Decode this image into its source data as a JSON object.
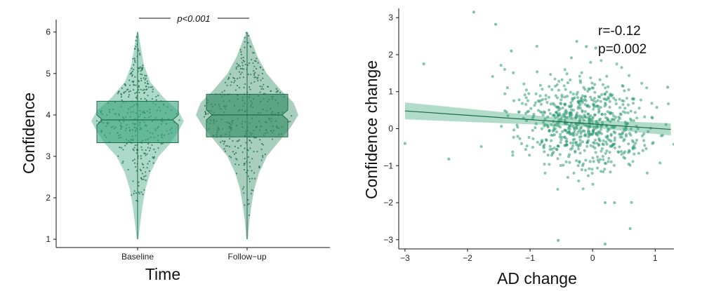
{
  "colors": {
    "baseline": "#3aa57e",
    "followup": "#2f8a63",
    "point": "#2f9a72",
    "line": "#1e6b4c",
    "ribbon": "#a3d6c0",
    "axis": "#111111"
  },
  "chart_data": [
    {
      "type": "violin-box",
      "xlabel": "Time",
      "ylabel": "Confidence",
      "categories": [
        "Baseline",
        "Follow−up"
      ],
      "ylim": [
        0.8,
        6.3
      ],
      "yticks": [
        "1",
        "2",
        "3",
        "4",
        "5",
        "6"
      ],
      "grid": false,
      "significance": "p<0.001",
      "series": [
        {
          "median": 3.88,
          "q1": 3.33,
          "q3": 4.33,
          "min": 1.0,
          "max": 6.0
        },
        {
          "median": 4.0,
          "q1": 3.47,
          "q3": 4.5,
          "min": 1.0,
          "max": 6.0
        }
      ]
    },
    {
      "type": "scatter",
      "xlabel": "AD change",
      "ylabel": "Confidence change",
      "xlim": [
        -3.1,
        1.3
      ],
      "ylim": [
        -3.25,
        3.25
      ],
      "xticks": [
        "−3",
        "−2",
        "−1",
        "0",
        "1"
      ],
      "yticks": [
        "−3",
        "−2",
        "−1",
        "0",
        "1",
        "2",
        "3"
      ],
      "grid": false,
      "annotation": {
        "r": "r=-0.12",
        "p": "p=0.002"
      },
      "fit": {
        "x": [
          -3.0,
          1.25
        ],
        "y": [
          0.48,
          -0.02
        ]
      },
      "notable_points": [
        {
          "x": -1.9,
          "y": 3.15
        },
        {
          "x": -1.55,
          "y": 2.82
        },
        {
          "x": -2.7,
          "y": 1.75
        },
        {
          "x": -3.0,
          "y": -0.4
        },
        {
          "x": -0.55,
          "y": -3.02
        },
        {
          "x": 0.2,
          "y": -3.12
        },
        {
          "x": 0.6,
          "y": -2.7
        },
        {
          "x": 0.2,
          "y": -2.0
        },
        {
          "x": 0.35,
          "y": -2.0
        },
        {
          "x": -0.1,
          "y": 2.22
        },
        {
          "x": 0.05,
          "y": 2.18
        },
        {
          "x": 1.2,
          "y": 1.12
        },
        {
          "x": 1.3,
          "y": -0.42
        },
        {
          "x": -2.3,
          "y": -0.82
        },
        {
          "x": -1.3,
          "y": 2.1
        }
      ]
    }
  ]
}
